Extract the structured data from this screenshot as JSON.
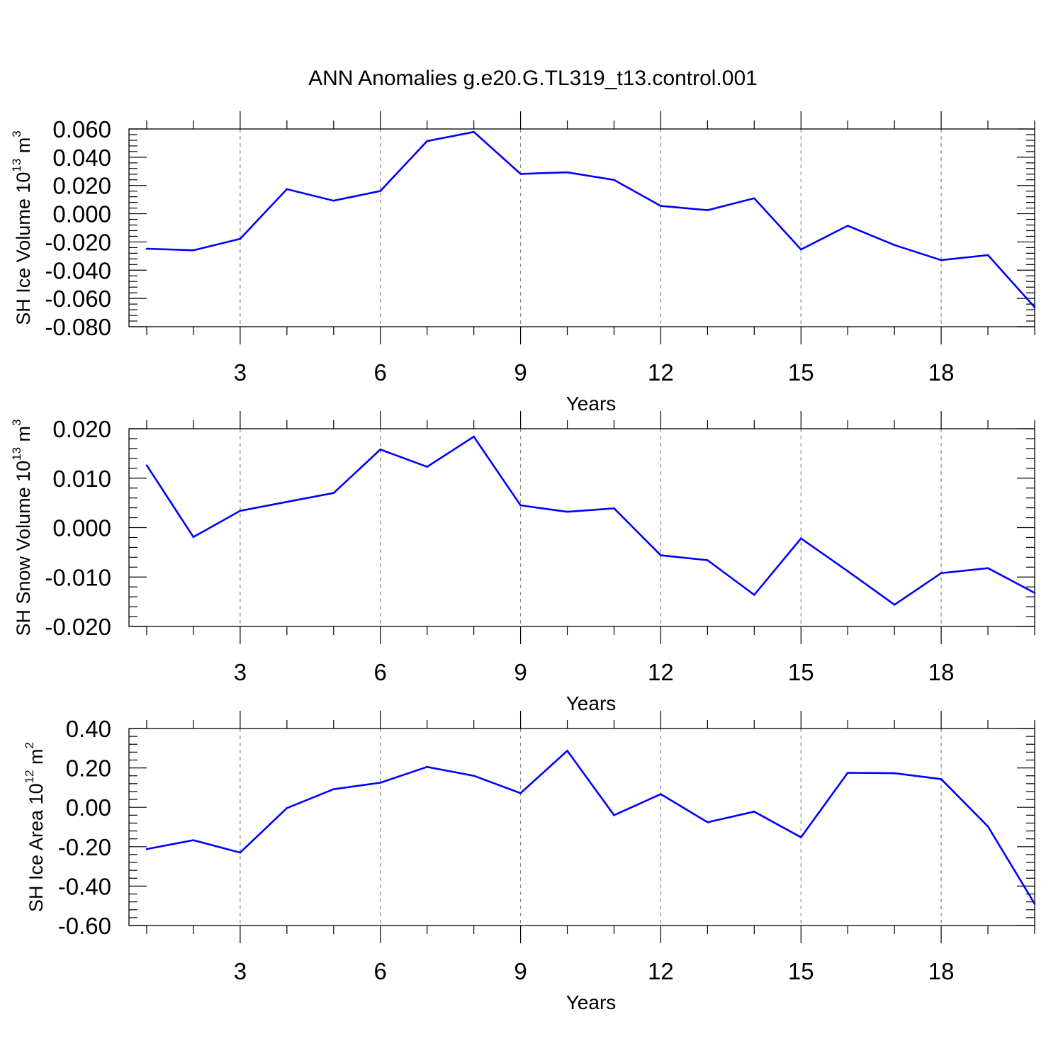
{
  "title": "ANN Anomalies g.e20.G.TL319_t13.control.001",
  "line_color": "#0000ff",
  "chart_data": [
    {
      "type": "line",
      "name": "ice-volume",
      "ylabel": {
        "prefix": "SH Ice Volume 10",
        "exp": "13",
        "unit": " m",
        "unit_exp": "3"
      },
      "xlabel": "Years",
      "xlim": [
        1,
        20
      ],
      "ylim": [
        -0.08,
        0.06
      ],
      "yticks": [
        -0.08,
        -0.06,
        -0.04,
        -0.02,
        0.0,
        0.02,
        0.04,
        0.06
      ],
      "ytick_labels": [
        "-0.080",
        "-0.060",
        "-0.040",
        "-0.020",
        "0.000",
        "0.020",
        "0.040",
        "0.060"
      ],
      "xticks": [
        3,
        6,
        9,
        12,
        15,
        18
      ],
      "xtick_labels": [
        "3",
        "6",
        "9",
        "12",
        "15",
        "18"
      ],
      "x": [
        1,
        2,
        3,
        4,
        5,
        6,
        7,
        8,
        9,
        10,
        11,
        12,
        13,
        14,
        15,
        16,
        17,
        18,
        19,
        20
      ],
      "values": [
        -0.0248,
        -0.0259,
        -0.0178,
        0.0174,
        0.0092,
        0.0161,
        0.0514,
        0.0579,
        0.0282,
        0.0293,
        0.0239,
        0.0055,
        0.0025,
        0.0109,
        -0.0253,
        -0.0085,
        -0.0222,
        -0.0329,
        -0.0293,
        -0.0662
      ]
    },
    {
      "type": "line",
      "name": "snow-volume",
      "ylabel": {
        "prefix": "SH Snow Volume 10",
        "exp": "13",
        "unit": " m",
        "unit_exp": "3"
      },
      "xlabel": "Years",
      "xlim": [
        1,
        20
      ],
      "ylim": [
        -0.02,
        0.02
      ],
      "yticks": [
        -0.02,
        -0.01,
        0.0,
        0.01,
        0.02
      ],
      "ytick_labels": [
        "-0.020",
        "-0.010",
        "0.000",
        "0.010",
        "0.020"
      ],
      "xticks": [
        3,
        6,
        9,
        12,
        15,
        18
      ],
      "xtick_labels": [
        "3",
        "6",
        "9",
        "12",
        "15",
        "18"
      ],
      "x": [
        1,
        2,
        3,
        4,
        5,
        6,
        7,
        8,
        9,
        10,
        11,
        12,
        13,
        14,
        15,
        16,
        17,
        18,
        19,
        20
      ],
      "values": [
        0.0126,
        -0.0019,
        0.0034,
        0.0052,
        0.007,
        0.0158,
        0.0123,
        0.0184,
        0.0045,
        0.0032,
        0.0039,
        -0.0056,
        -0.0066,
        -0.0136,
        -0.0022,
        -0.0088,
        -0.0156,
        -0.0092,
        -0.0082,
        -0.0132
      ]
    },
    {
      "type": "line",
      "name": "ice-area",
      "ylabel": {
        "prefix": "SH Ice Area 10",
        "exp": "12",
        "unit": " m",
        "unit_exp": "2"
      },
      "xlabel": "Years",
      "xlim": [
        1,
        20
      ],
      "ylim": [
        -0.6,
        0.4
      ],
      "yticks": [
        -0.6,
        -0.4,
        -0.2,
        0.0,
        0.2,
        0.4
      ],
      "ytick_labels": [
        "-0.60",
        "-0.40",
        "-0.20",
        "0.00",
        "0.20",
        "0.40"
      ],
      "xticks": [
        3,
        6,
        9,
        12,
        15,
        18
      ],
      "xtick_labels": [
        "3",
        "6",
        "9",
        "12",
        "15",
        "18"
      ],
      "x": [
        1,
        2,
        3,
        4,
        5,
        6,
        7,
        8,
        9,
        10,
        11,
        12,
        13,
        14,
        15,
        16,
        17,
        18,
        19,
        20
      ],
      "values": [
        -0.212,
        -0.167,
        -0.23,
        -0.004,
        0.092,
        0.125,
        0.205,
        0.16,
        0.072,
        0.287,
        -0.04,
        0.067,
        -0.076,
        -0.022,
        -0.152,
        0.175,
        0.173,
        0.143,
        -0.097,
        -0.49
      ]
    }
  ]
}
